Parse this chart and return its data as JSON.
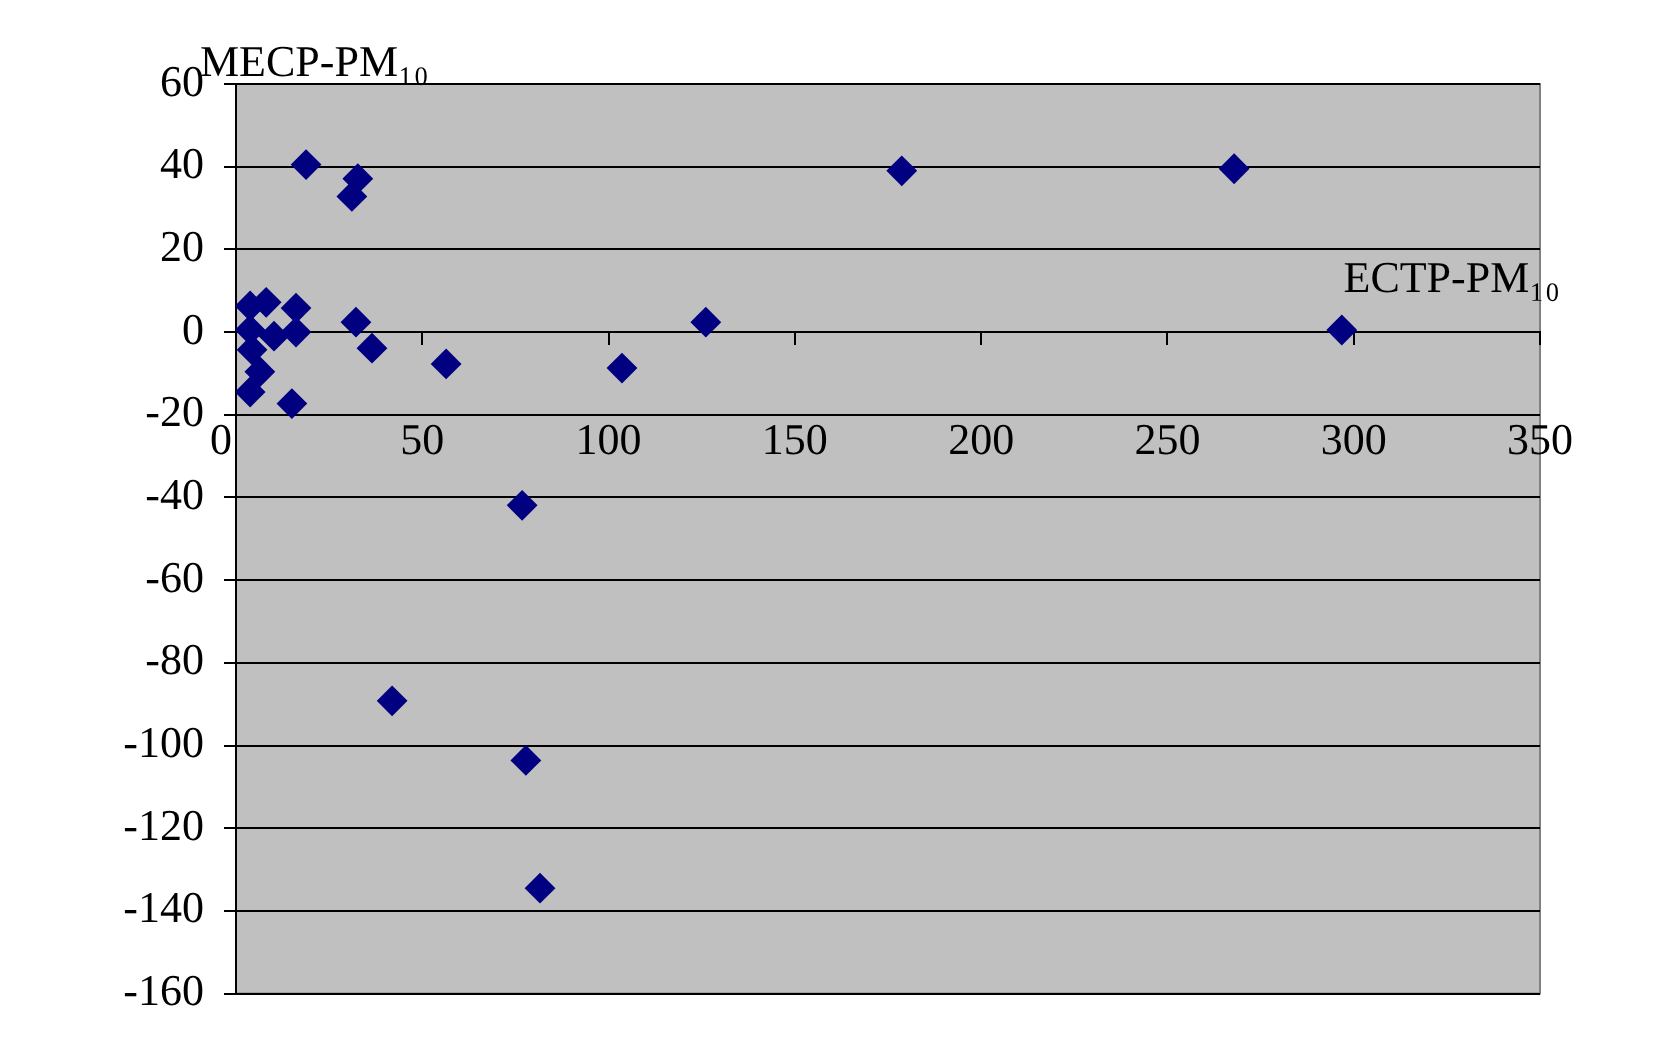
{
  "chart_data": {
    "type": "scatter",
    "xlabel": "ECTP-PM₁₀",
    "ylabel": "MECP-PM₁₀",
    "series": [
      {
        "color": "#000080",
        "x": [
          3.8,
          8.1,
          16.1,
          3.8,
          10.2,
          16.1,
          32.2,
          36.5,
          4.3,
          6.4,
          3.8,
          15,
          56.4,
          18.8,
          32.7,
          31.1,
          76.8,
          41.9,
          77.8,
          81.6,
          178.7,
          267.9,
          126.1,
          103.6,
          296.8
        ],
        "values": [
          6.3,
          7.2,
          5.8,
          0.5,
          -1,
          0,
          2.4,
          -3.9,
          -4.3,
          -9.6,
          -14.5,
          -17.3,
          -7.7,
          40.5,
          37.1,
          32.8,
          -41.9,
          -89.2,
          -103.6,
          -134.5,
          39,
          39.5,
          2.4,
          -8.7,
          0.5
        ]
      }
    ],
    "xlim": [
      0,
      350
    ],
    "xticks": [
      0,
      50,
      100,
      150,
      200,
      250,
      300,
      350
    ],
    "ylim": [
      -160,
      60
    ],
    "yticks": [
      -160,
      -140,
      -120,
      -100,
      -80,
      -60,
      -40,
      -20,
      0,
      20,
      40,
      60
    ],
    "grid": "y",
    "marker": "diamond",
    "legend": false
  }
}
